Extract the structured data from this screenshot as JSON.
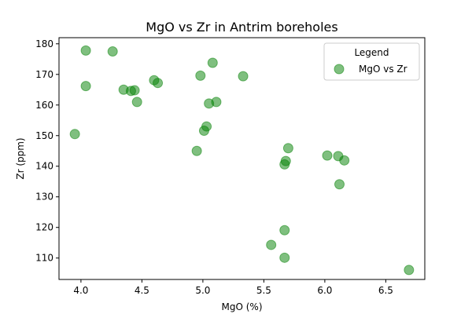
{
  "chart_data": {
    "type": "scatter",
    "title": "MgO vs Zr in Antrim boreholes",
    "xlabel": "MgO (%)",
    "ylabel": "Zr (ppm)",
    "xlim": [
      3.82,
      6.82
    ],
    "ylim": [
      103,
      182
    ],
    "xticks": [
      4.0,
      4.5,
      5.0,
      5.5,
      6.0,
      6.5
    ],
    "xtick_labels": [
      "4.0",
      "4.5",
      "5.0",
      "5.5",
      "6.0",
      "6.5"
    ],
    "yticks": [
      110,
      120,
      130,
      140,
      150,
      160,
      170,
      180
    ],
    "ytick_labels": [
      "110",
      "120",
      "130",
      "140",
      "150",
      "160",
      "170",
      "180"
    ],
    "grid": false,
    "legend": {
      "title": "Legend",
      "placement": "top-right"
    },
    "series": [
      {
        "name": "MgO vs Zr",
        "color": "#008000",
        "opacity": 0.5,
        "marker": "circle",
        "points": [
          [
            3.95,
            150.5
          ],
          [
            4.04,
            177.8
          ],
          [
            4.04,
            166.2
          ],
          [
            4.26,
            177.5
          ],
          [
            4.35,
            165.0
          ],
          [
            4.41,
            164.6
          ],
          [
            4.44,
            164.8
          ],
          [
            4.46,
            161.0
          ],
          [
            4.6,
            168.1
          ],
          [
            4.63,
            167.2
          ],
          [
            4.95,
            145.0
          ],
          [
            4.98,
            169.6
          ],
          [
            5.01,
            151.6
          ],
          [
            5.03,
            153.0
          ],
          [
            5.05,
            160.5
          ],
          [
            5.08,
            173.8
          ],
          [
            5.11,
            161.0
          ],
          [
            5.33,
            169.4
          ],
          [
            5.56,
            114.3
          ],
          [
            5.67,
            140.6
          ],
          [
            5.67,
            119.1
          ],
          [
            5.67,
            110.1
          ],
          [
            5.68,
            141.7
          ],
          [
            5.7,
            145.9
          ],
          [
            6.02,
            143.5
          ],
          [
            6.11,
            143.3
          ],
          [
            6.12,
            134.1
          ],
          [
            6.16,
            141.9
          ],
          [
            6.69,
            106.1
          ]
        ]
      }
    ]
  }
}
